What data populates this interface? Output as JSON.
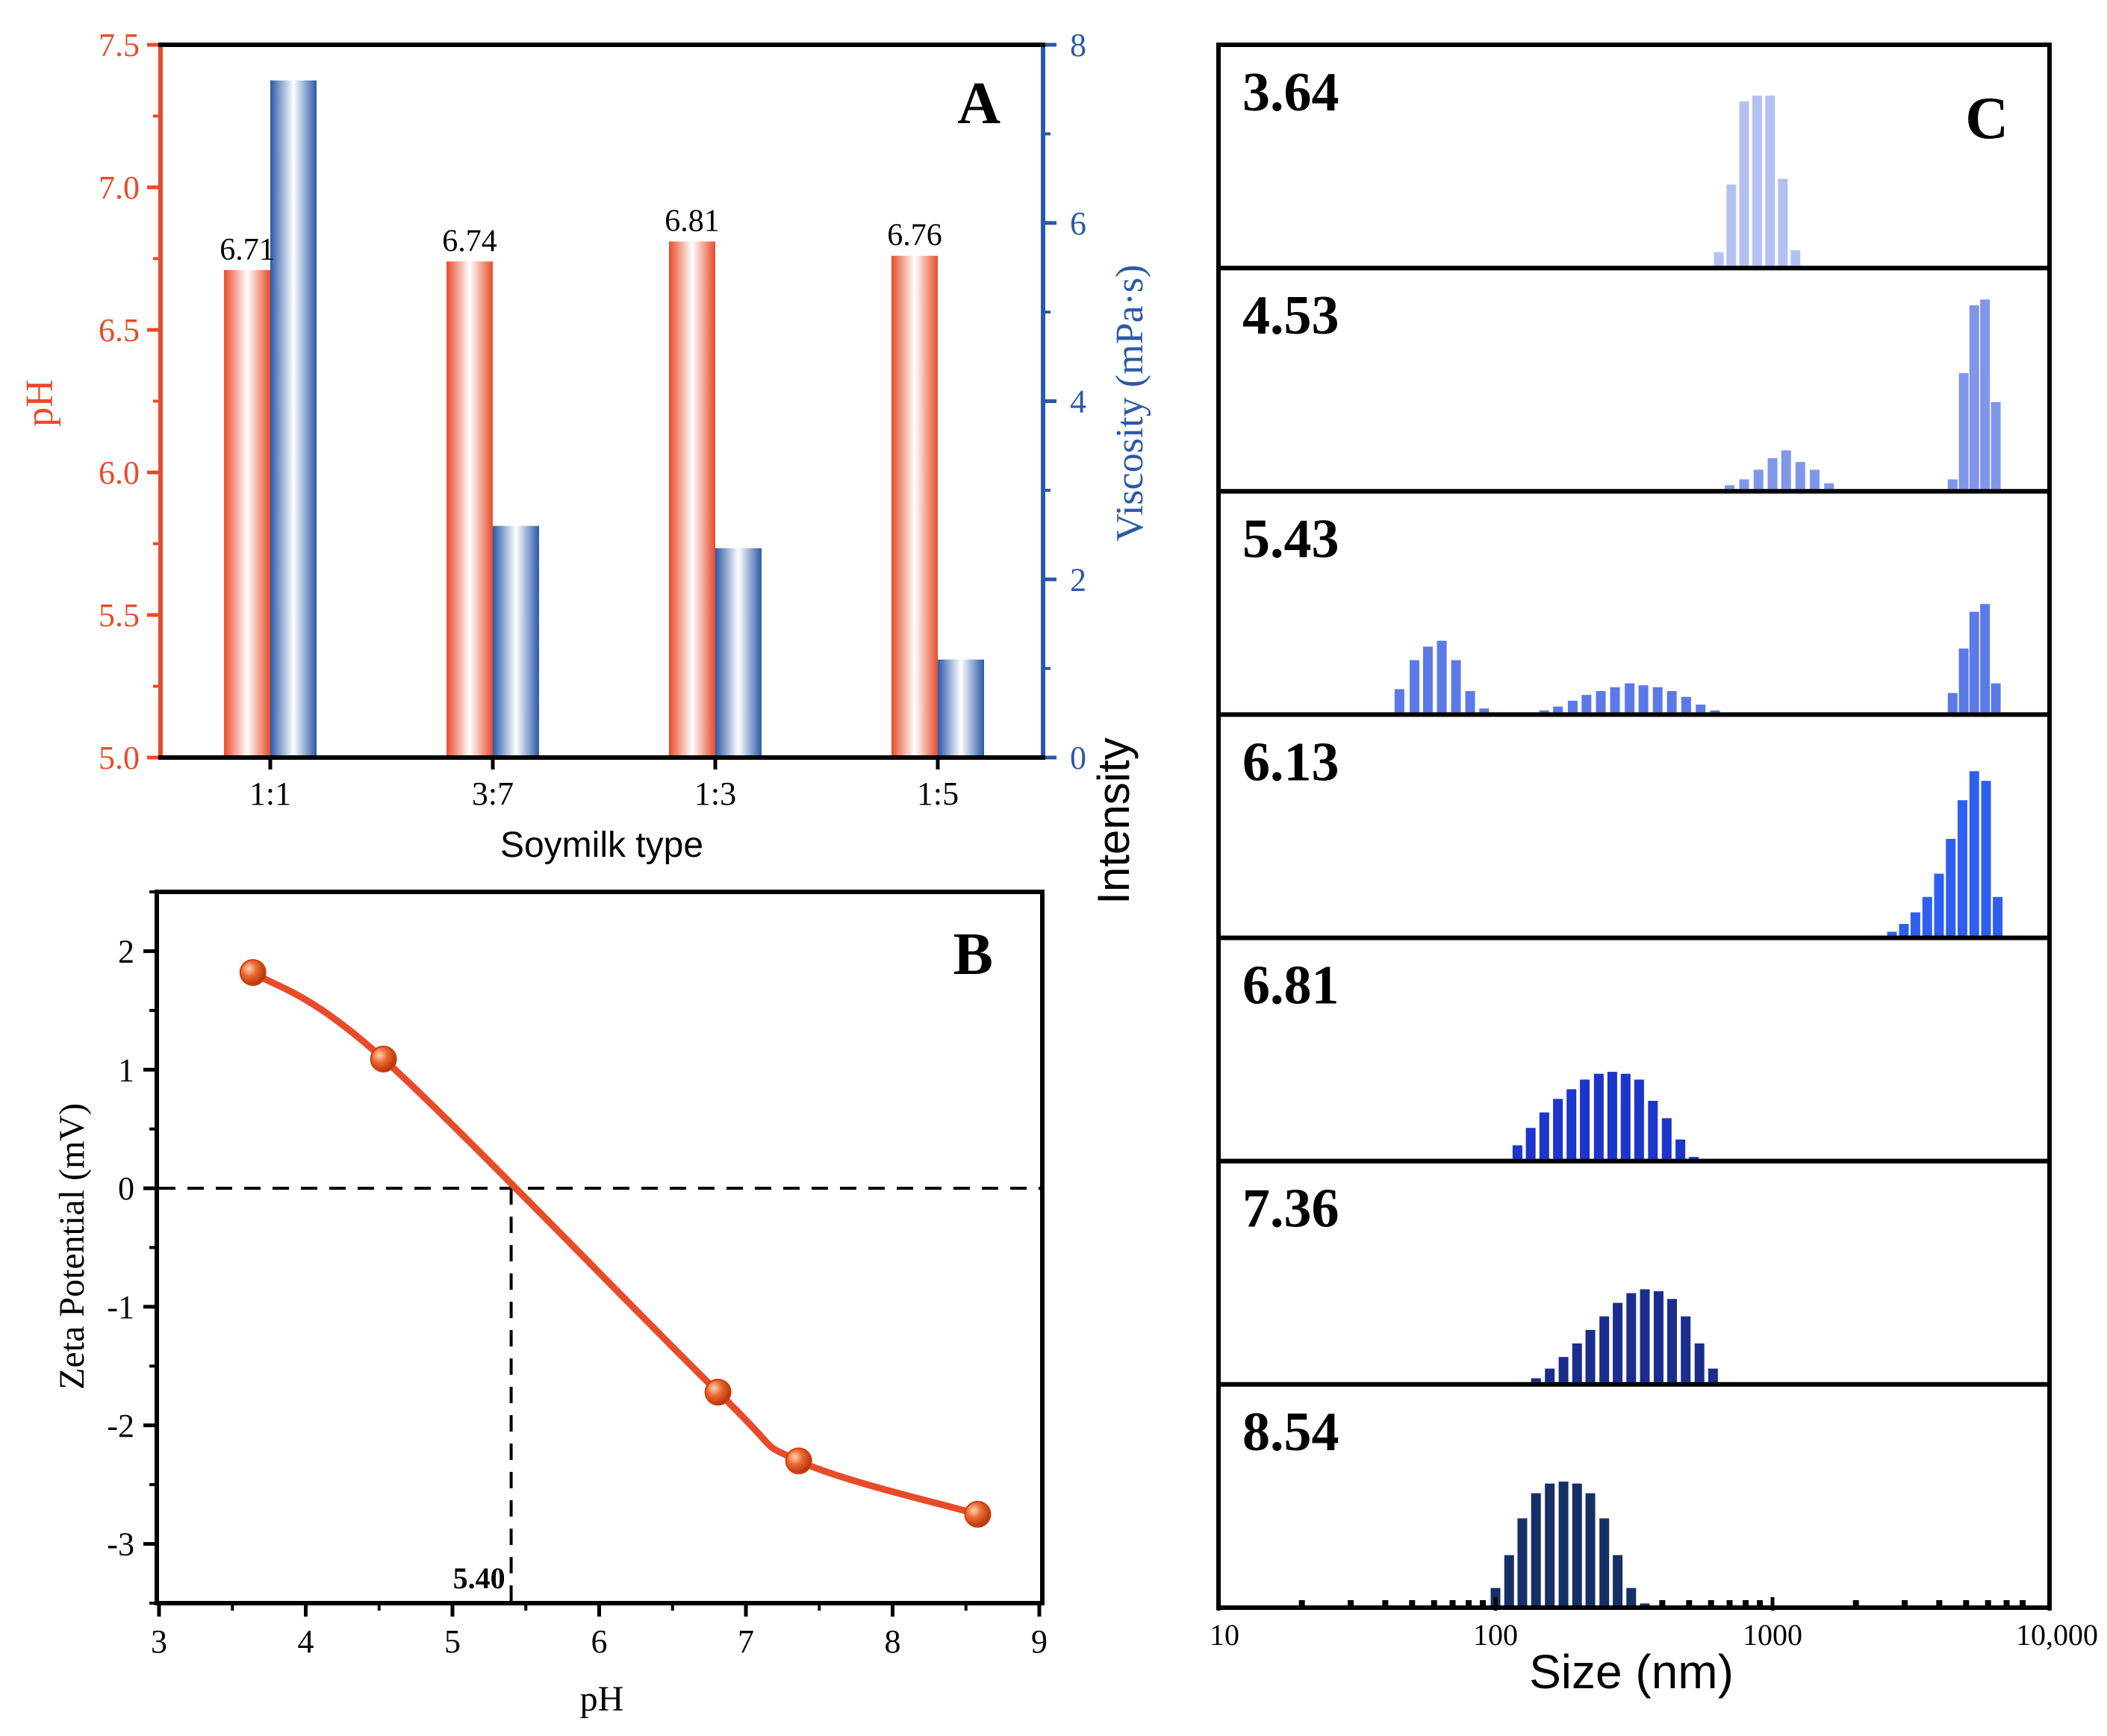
{
  "chart_data": [
    {
      "panel": "A",
      "type": "bar",
      "panel_label": "A",
      "categories": [
        "1:1",
        "3:7",
        "1:3",
        "1:5"
      ],
      "xlabel": "Soymilk type",
      "series": [
        {
          "name": "pH",
          "axis": "left",
          "color": "#e84b2a",
          "values": [
            6.71,
            6.74,
            6.81,
            6.76
          ],
          "labels": [
            "6.71",
            "6.74",
            "6.81",
            "6.76"
          ]
        },
        {
          "name": "Viscosity",
          "axis": "right",
          "color": "#2b59a8",
          "values": [
            7.6,
            2.6,
            2.35,
            1.1
          ]
        }
      ],
      "ylabel_left": "pH",
      "ylim_left": [
        5.0,
        7.5
      ],
      "yticks_left": [
        "5.0",
        "5.5",
        "6.0",
        "6.5",
        "7.0",
        "7.5"
      ],
      "ylabel_right": "Viscosity (mPa·s)",
      "ylim_right": [
        0,
        8
      ],
      "yticks_right": [
        "0",
        "2",
        "4",
        "6",
        "8"
      ],
      "left_axis_color": "#e84b2a",
      "right_axis_color": "#2b59a8"
    },
    {
      "panel": "B",
      "type": "scatter",
      "panel_label": "B",
      "x": [
        3.64,
        4.53,
        6.81,
        7.36,
        8.58
      ],
      "y": [
        1.82,
        1.09,
        -1.72,
        -2.3,
        -2.75
      ],
      "xlabel": "pH",
      "ylabel": "Zeta Potential (mV)",
      "xlim": [
        3,
        9
      ],
      "ylim": [
        -3.5,
        2.5
      ],
      "xticks": [
        "3",
        "4",
        "5",
        "6",
        "7",
        "8",
        "9"
      ],
      "yticks": [
        "2",
        "1",
        "0",
        "-1",
        "-2",
        "-3"
      ],
      "isoelectric_point": 5.4,
      "isoelectric_label": "5.40",
      "color": "#e84b2a"
    },
    {
      "panel": "C",
      "type": "bar",
      "panel_label": "C",
      "xlabel": "Size (nm)",
      "ylabel": "Intensity",
      "xscale": "log",
      "xlim": [
        10,
        10000
      ],
      "xticks": [
        "10",
        "100",
        "1000",
        "10,000"
      ],
      "rows": [
        {
          "label": "3.64",
          "color": "#b4c0f2",
          "sizes": [
            640,
            710,
            790,
            880,
            980,
            1090,
            1210,
            1350
          ],
          "intensities": [
            0.07,
            0.42,
            0.85,
            0.88,
            0.88,
            0.45,
            0.08,
            0.0
          ]
        },
        {
          "label": "4.53",
          "color": "#8096ea",
          "sizes": [
            700,
            790,
            890,
            1000,
            1120,
            1260,
            1420,
            1600,
            1800,
            4470,
            4900,
            5350,
            5850,
            6400
          ],
          "intensities": [
            0.02,
            0.05,
            0.1,
            0.16,
            0.2,
            0.14,
            0.1,
            0.03,
            0.0,
            0.05,
            0.6,
            0.95,
            0.98,
            0.45
          ]
        },
        {
          "label": "5.43",
          "color": "#5b7ae8",
          "sizes": [
            45,
            51,
            57,
            64,
            72,
            81,
            91,
            150,
            168,
            190,
            213,
            240,
            270,
            305,
            342,
            385,
            433,
            488,
            550,
            620,
            4470,
            4900,
            5350,
            5850,
            6400
          ],
          "intensities": [
            0.12,
            0.27,
            0.34,
            0.37,
            0.27,
            0.11,
            0.02,
            0.01,
            0.03,
            0.06,
            0.09,
            0.11,
            0.13,
            0.15,
            0.14,
            0.13,
            0.11,
            0.08,
            0.04,
            0.01,
            0.1,
            0.33,
            0.52,
            0.56,
            0.15
          ]
        },
        {
          "label": "6.13",
          "color": "#2f5ff2",
          "sizes": [
            2700,
            2980,
            3280,
            3620,
            3990,
            4400,
            4850,
            5350,
            5900,
            6500
          ],
          "intensities": [
            0.02,
            0.06,
            0.12,
            0.2,
            0.32,
            0.5,
            0.7,
            0.85,
            0.8,
            0.2
          ]
        },
        {
          "label": "6.81",
          "color": "#1c35cc",
          "sizes": [
            120,
            134,
            150,
            168,
            188,
            210,
            236,
            264,
            295,
            330,
            370,
            415,
            465,
            520
          ],
          "intensities": [
            0.07,
            0.16,
            0.24,
            0.31,
            0.36,
            0.41,
            0.44,
            0.45,
            0.44,
            0.41,
            0.3,
            0.21,
            0.1,
            0.01
          ]
        },
        {
          "label": "7.36",
          "color": "#1b2e8e",
          "sizes": [
            140,
            157,
            176,
            197,
            220,
            247,
            276,
            309,
            346,
            388,
            434,
            486,
            545,
            610
          ],
          "intensities": [
            0.02,
            0.07,
            0.13,
            0.2,
            0.27,
            0.34,
            0.41,
            0.46,
            0.48,
            0.47,
            0.43,
            0.34,
            0.2,
            0.07
          ]
        },
        {
          "label": "8.54",
          "color": "#163067",
          "sizes": [
            100,
            112,
            125,
            140,
            157,
            176,
            197,
            220,
            247,
            276,
            309,
            346
          ],
          "intensities": [
            0.09,
            0.26,
            0.45,
            0.58,
            0.63,
            0.64,
            0.63,
            0.58,
            0.45,
            0.26,
            0.09,
            0.01
          ]
        }
      ]
    }
  ]
}
